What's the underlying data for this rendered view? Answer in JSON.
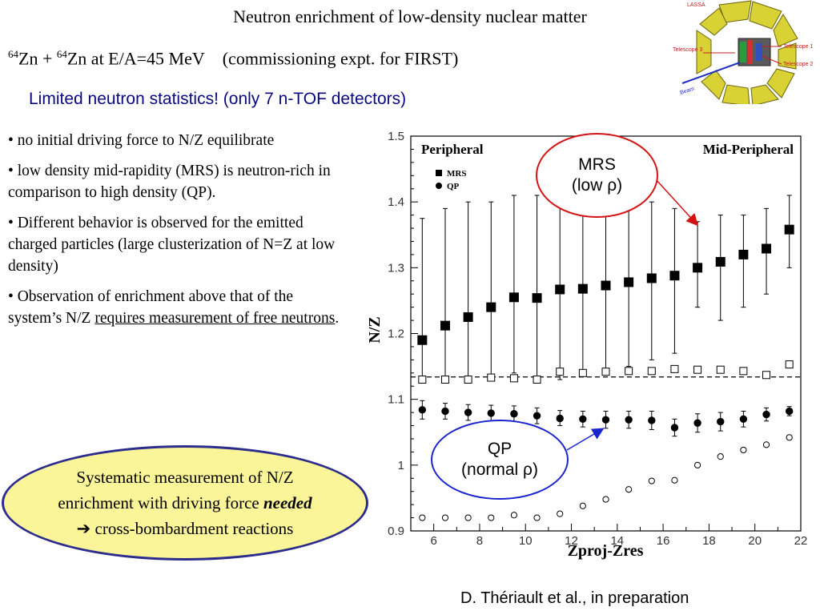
{
  "slide": {
    "title": "Neutron enrichment of low-density nuclear matter",
    "reaction": {
      "sup1": "64",
      "part1": "Zn + ",
      "sup2": "64",
      "part2": "Zn at E/A=45 MeV",
      "part3": "(commissioning expt. for FIRST)"
    },
    "note": "Limited neutron statistics! (only 7 n-TOF detectors)",
    "bullets": [
      "• no initial driving force to N/Z equilibrate",
      "• low density mid-rapidity (MRS) is neutron-rich in comparison to high density (QP).",
      "• Different behavior is observed for the emitted charged particles (large clusterization of N=Z at low density)"
    ],
    "bullet4": {
      "pre": "• Observation of enrichment above that of the system’s N/Z ",
      "underlined": "requires measurement of free neutrons",
      "post": "."
    },
    "summary": {
      "line1": "Systematic measurement of N/Z",
      "line2_pre": "enrichment with driving force ",
      "line2_em": "needed",
      "arrow": "➔",
      "line3": " cross-bombardment reactions"
    },
    "callout_mrs": {
      "line1": "MRS",
      "line2": "(low ρ)"
    },
    "callout_qp": {
      "line1": "QP",
      "line2": "(normal ρ)"
    },
    "credit": "D. Thériault et al., in preparation",
    "detector_labels": {
      "lassa": "LASSA",
      "telescope1": "Telescope 1",
      "telescope2": "Telescope 2",
      "telescope3": "Telescope 3",
      "beam": "Beam"
    }
  },
  "chart_data": {
    "type": "scatter",
    "xlabel": "Zproj-Zres",
    "ylabel": "N/Z",
    "xlim": [
      5,
      22
    ],
    "ylim": [
      0.9,
      1.5
    ],
    "xticks": [
      6,
      8,
      10,
      12,
      14,
      16,
      18,
      20,
      22
    ],
    "yticks": [
      0.9,
      1,
      1.1,
      1.2,
      1.3,
      1.4,
      1.5
    ],
    "panel_labels": [
      "Peripheral",
      "Mid-Peripheral"
    ],
    "legend": [
      "MRS",
      "QP"
    ],
    "reference_line_y": 1.134,
    "x": [
      5.5,
      6.5,
      7.5,
      8.5,
      9.5,
      10.5,
      11.5,
      12.5,
      13.5,
      14.5,
      15.5,
      16.5,
      17.5,
      18.5,
      19.5,
      20.5,
      21.5
    ],
    "series": [
      {
        "name": "MRS",
        "marker": "filled-square",
        "values": [
          1.19,
          1.212,
          1.225,
          1.24,
          1.255,
          1.254,
          1.267,
          1.268,
          1.273,
          1.278,
          1.284,
          1.288,
          1.3,
          1.309,
          1.32,
          1.329,
          1.358
        ],
        "err_low": [
          1.13,
          1.13,
          1.13,
          1.135,
          1.14,
          1.135,
          1.13,
          1.14,
          1.14,
          1.15,
          1.16,
          1.17,
          1.24,
          1.22,
          1.24,
          1.26,
          1.3
        ],
        "err_high": [
          1.375,
          1.39,
          1.4,
          1.4,
          1.41,
          1.41,
          1.4,
          1.4,
          1.4,
          1.4,
          1.4,
          1.39,
          1.37,
          1.38,
          1.38,
          1.39,
          1.41
        ]
      },
      {
        "values": [
          1.13,
          1.13,
          1.13,
          1.133,
          1.132,
          1.13,
          1.142,
          1.14,
          1.142,
          1.143,
          1.143,
          1.146,
          1.145,
          1.145,
          1.143,
          1.137,
          1.153
        ]
      },
      {
        "name": "QP",
        "marker": "filled-circle",
        "values": [
          1.084,
          1.082,
          1.08,
          1.079,
          1.078,
          1.075,
          1.071,
          1.07,
          1.069,
          1.069,
          1.068,
          1.057,
          1.064,
          1.066,
          1.07,
          1.077,
          1.082
        ],
        "err_low": [
          1.07,
          1.07,
          1.068,
          1.067,
          1.066,
          1.063,
          1.06,
          1.058,
          1.056,
          1.056,
          1.054,
          1.044,
          1.05,
          1.052,
          1.058,
          1.067,
          1.075
        ],
        "err_high": [
          1.098,
          1.094,
          1.092,
          1.091,
          1.09,
          1.087,
          1.083,
          1.082,
          1.082,
          1.082,
          1.082,
          1.07,
          1.078,
          1.08,
          1.082,
          1.087,
          1.089
        ]
      },
      {
        "values": [
          0.92,
          0.92,
          0.92,
          0.92,
          0.924,
          0.92,
          0.926,
          0.938,
          0.948,
          0.963,
          0.976,
          0.977,
          1.0,
          1.013,
          1.023,
          1.031,
          1.042
        ]
      }
    ],
    "colors": {
      "marker": "#000000",
      "callout_mrs": "#d21414",
      "callout_qp": "#1a24cc",
      "summary_fill": "#fbf59a",
      "note_text": "#0a0a80"
    }
  }
}
